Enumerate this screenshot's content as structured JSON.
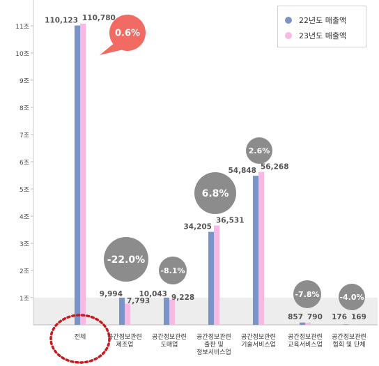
{
  "chart_data": {
    "type": "bar",
    "ylabel": "",
    "ylim": [
      0,
      115000
    ],
    "yticks": [
      {
        "value": 10000,
        "label": "1조"
      },
      {
        "value": 20000,
        "label": "2조"
      },
      {
        "value": 30000,
        "label": "3조"
      },
      {
        "value": 40000,
        "label": "4조"
      },
      {
        "value": 50000,
        "label": "5조"
      },
      {
        "value": 60000,
        "label": "6조"
      },
      {
        "value": 70000,
        "label": "7조"
      },
      {
        "value": 80000,
        "label": "8조"
      },
      {
        "value": 90000,
        "label": "9조"
      },
      {
        "value": 100000,
        "label": "10조"
      },
      {
        "value": 110000,
        "label": "11조"
      }
    ],
    "categories": [
      "전체",
      "공간정보관련\n제조업",
      "공간정보관련\n도매업",
      "공간정보관련\n출판 및\n정보서비스업",
      "공간정보관련\n기술서비스업",
      "공간정보관련\n교육서비스업",
      "공간정보관련\n협회 및 단체"
    ],
    "series": [
      {
        "name": "22년도 매출액",
        "color": "#7b93c6",
        "values": [
          110123,
          9994,
          10043,
          34205,
          54848,
          857,
          176
        ]
      },
      {
        "name": "23년도 매출액",
        "color": "#f9b8e2",
        "values": [
          110780,
          7793,
          9228,
          36531,
          56268,
          790,
          169
        ]
      }
    ],
    "value_labels": [
      [
        "110,123",
        "9,994",
        "10,043",
        "34,205",
        "54,848",
        "857",
        "176"
      ],
      [
        "110,780",
        "7,793",
        "9,228",
        "36,531",
        "56,268",
        "790",
        "169"
      ]
    ],
    "growth_labels": [
      "0.6%",
      "-22.0%",
      "-8.1%",
      "6.8%",
      "2.6%",
      "-7.8%",
      "-4.0%"
    ],
    "highlight_category": "전체",
    "colors": {
      "growth_positive_total": "#f26b62",
      "growth_bubble": "#8c8c8c",
      "highlight_circle": "#c8191e",
      "bottom_band": "#ededed"
    },
    "grid": false,
    "legend_position": "top-right"
  }
}
